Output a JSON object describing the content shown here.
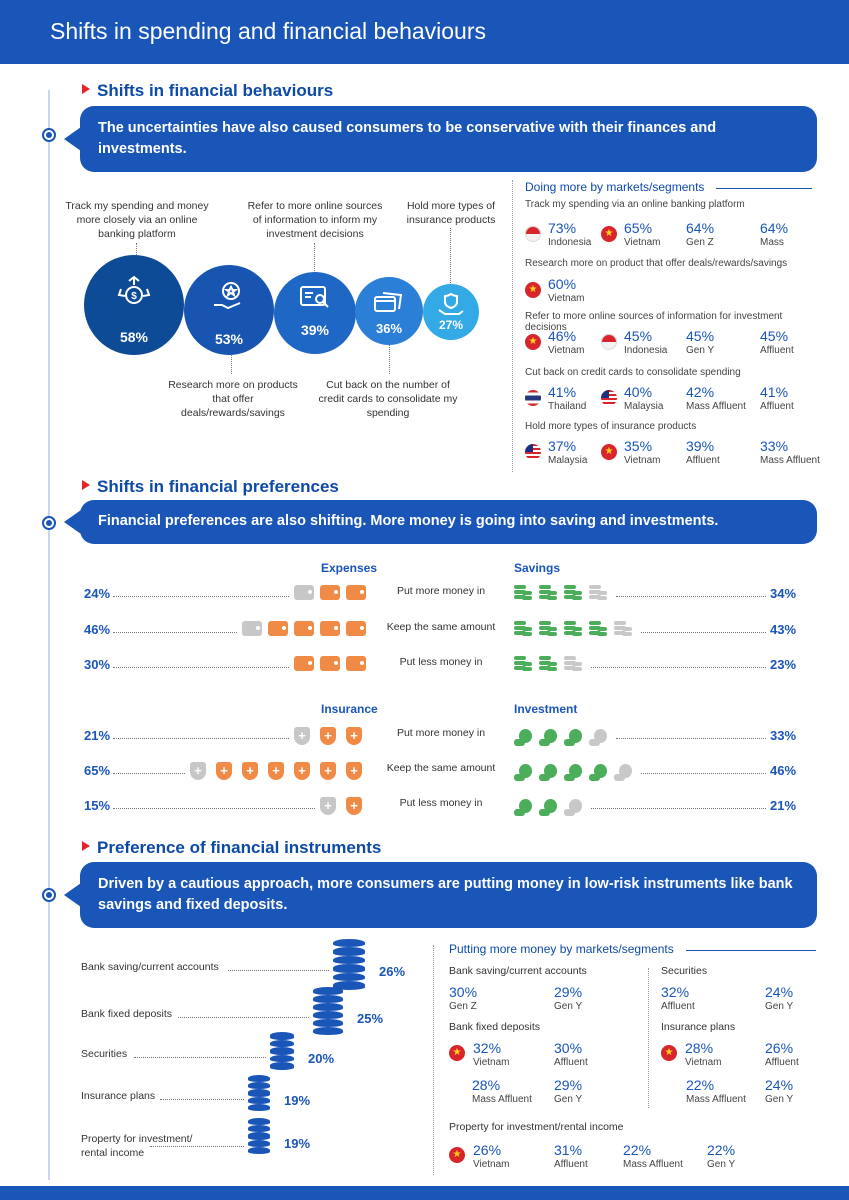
{
  "header": {
    "title": "Shifts in spending and financial behaviours"
  },
  "section1": {
    "title": "Shifts in financial behaviours",
    "banner": "The uncertainties have also caused consumers to be conservative with their finances and investments.",
    "behaviours": [
      {
        "label": "Track my spending and money more closely via an online banking platform",
        "pct": "58%",
        "icon": "money-arrows-icon",
        "color": "#0e4b96"
      },
      {
        "label": "Research more on products that offer deals/rewards/savings",
        "pct": "53%",
        "icon": "reward-hand-icon",
        "color": "#1755b0"
      },
      {
        "label": "Refer to more online sources of information to inform my investment decisions",
        "pct": "39%",
        "icon": "online-research-icon",
        "color": "#1f67c5"
      },
      {
        "label": "Cut back on the number of credit cards to consolidate my spending",
        "pct": "36%",
        "icon": "credit-cards-icon",
        "color": "#2b7fd6"
      },
      {
        "label": "Hold more types of insurance products",
        "pct": "27%",
        "icon": "insurance-hand-icon",
        "color": "#33a9e6"
      }
    ],
    "markets": {
      "title": "Doing more by markets/segments",
      "groups": [
        {
          "sub": "Track my spending via an online banking platform",
          "items": [
            {
              "flag": "id",
              "value": "73%",
              "name": "Indonesia"
            },
            {
              "flag": "vn",
              "value": "65%",
              "name": "Vietnam"
            },
            {
              "flag": "",
              "value": "64%",
              "name": "Gen Z"
            },
            {
              "flag": "",
              "value": "64%",
              "name": "Mass"
            }
          ]
        },
        {
          "sub": "Research more on product that offer deals/rewards/savings",
          "items": [
            {
              "flag": "vn",
              "value": "60%",
              "name": "Vietnam"
            }
          ]
        },
        {
          "sub": "Refer to more online sources of information for investment decisions",
          "items": [
            {
              "flag": "vn",
              "value": "46%",
              "name": "Vietnam"
            },
            {
              "flag": "id",
              "value": "45%",
              "name": "Indonesia"
            },
            {
              "flag": "",
              "value": "45%",
              "name": "Gen Y"
            },
            {
              "flag": "",
              "value": "45%",
              "name": "Affluent"
            }
          ]
        },
        {
          "sub": "Cut back on credit cards to consolidate spending",
          "items": [
            {
              "flag": "th",
              "value": "41%",
              "name": "Thailand"
            },
            {
              "flag": "my",
              "value": "40%",
              "name": "Malaysia"
            },
            {
              "flag": "",
              "value": "42%",
              "name": "Mass Affluent"
            },
            {
              "flag": "",
              "value": "41%",
              "name": "Affluent"
            }
          ]
        },
        {
          "sub": "Hold more types of insurance products",
          "items": [
            {
              "flag": "my",
              "value": "37%",
              "name": "Malaysia"
            },
            {
              "flag": "vn",
              "value": "35%",
              "name": "Vietnam"
            },
            {
              "flag": "",
              "value": "39%",
              "name": "Affluent"
            },
            {
              "flag": "",
              "value": "33%",
              "name": "Mass Affluent"
            }
          ]
        }
      ]
    }
  },
  "section2": {
    "title": "Shifts in financial preferences",
    "banner": "Financial preferences are also shifting. More money is going into saving and investments.",
    "rows_labels": [
      "Put more money in",
      "Keep the same amount",
      "Put less money in"
    ],
    "expenses": {
      "title": "Expenses",
      "values": [
        "24%",
        "46%",
        "30%"
      ],
      "icons": [
        2.4,
        4.6,
        3.0
      ]
    },
    "savings": {
      "title": "Savings",
      "values": [
        "34%",
        "43%",
        "23%"
      ],
      "icons": [
        3.4,
        4.3,
        2.3
      ]
    },
    "insurance": {
      "title": "Insurance",
      "values": [
        "21%",
        "65%",
        "15%"
      ],
      "icons": [
        2.1,
        6.5,
        1.5
      ]
    },
    "investment": {
      "title": "Investment",
      "values": [
        "33%",
        "46%",
        "21%"
      ],
      "icons": [
        3.3,
        4.6,
        2.1
      ]
    }
  },
  "section3": {
    "title": "Preference of financial instruments",
    "banner": "Driven by a cautious approach, more consumers are putting money in low-risk instruments like bank savings and fixed deposits.",
    "instruments": [
      {
        "label": "Bank saving/current accounts",
        "pct": "26%",
        "value": 26
      },
      {
        "label": "Bank fixed deposits",
        "pct": "25%",
        "value": 25
      },
      {
        "label": "Securities",
        "pct": "20%",
        "value": 20
      },
      {
        "label": "Insurance plans",
        "pct": "19%",
        "value": 19
      },
      {
        "label": "Property for investment/\nrental income",
        "pct": "19%",
        "value": 19
      }
    ],
    "putting_more": {
      "title": "Putting more money by markets/segments",
      "bank_saving": {
        "sub": "Bank saving/current accounts",
        "items": [
          {
            "flag": "",
            "value": "30%",
            "name": "Gen Z"
          },
          {
            "flag": "",
            "value": "29%",
            "name": "Gen Y"
          }
        ]
      },
      "bank_fixed": {
        "sub": "Bank fixed deposits",
        "items": [
          {
            "flag": "vn",
            "value": "32%",
            "name": "Vietnam"
          },
          {
            "flag": "",
            "value": "30%",
            "name": "Affluent"
          },
          {
            "flag": "",
            "value": "28%",
            "name": "Mass Affluent"
          },
          {
            "flag": "",
            "value": "29%",
            "name": "Gen Y"
          }
        ]
      },
      "securities": {
        "sub": "Securities",
        "items": [
          {
            "flag": "",
            "value": "32%",
            "name": "Affluent"
          },
          {
            "flag": "",
            "value": "24%",
            "name": "Gen Y"
          }
        ]
      },
      "insurance_plans": {
        "sub": "Insurance plans",
        "items": [
          {
            "flag": "vn",
            "value": "28%",
            "name": "Vietnam"
          },
          {
            "flag": "",
            "value": "26%",
            "name": "Affluent"
          },
          {
            "flag": "",
            "value": "22%",
            "name": "Mass Affluent"
          },
          {
            "flag": "",
            "value": "24%",
            "name": "Gen Y"
          }
        ]
      },
      "property": {
        "sub": "Property for investment/rental income",
        "items": [
          {
            "flag": "vn",
            "value": "26%",
            "name": "Vietnam"
          },
          {
            "flag": "",
            "value": "31%",
            "name": "Affluent"
          },
          {
            "flag": "",
            "value": "22%",
            "name": "Mass Affluent"
          },
          {
            "flag": "",
            "value": "22%",
            "name": "Gen Y"
          }
        ]
      }
    }
  }
}
